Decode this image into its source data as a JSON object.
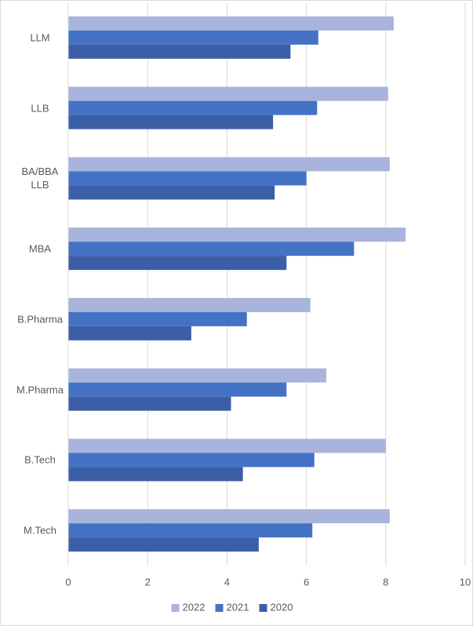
{
  "chart_data": {
    "type": "hbar",
    "categories": [
      "LLM",
      "LLB",
      "BA/BBA LLB",
      "MBA",
      "B.Pharma",
      "M.Pharma",
      "B.Tech",
      "M.Tech"
    ],
    "series": [
      {
        "name": "2022",
        "color": "#a9b4dc",
        "values": [
          8.2,
          8.06,
          8.1,
          8.5,
          6.1,
          6.5,
          8.0,
          8.1
        ]
      },
      {
        "name": "2021",
        "color": "#4472c4",
        "values": [
          6.3,
          6.27,
          6.0,
          7.2,
          4.5,
          5.5,
          6.2,
          6.15
        ]
      },
      {
        "name": "2020",
        "color": "#3b5ea6",
        "values": [
          5.6,
          5.16,
          5.2,
          5.5,
          3.1,
          4.1,
          4.4,
          4.8
        ]
      }
    ],
    "xlim": [
      0,
      10
    ],
    "xticks": [
      0,
      2,
      4,
      6,
      8,
      10
    ],
    "grid": true,
    "legend": "bottom"
  }
}
